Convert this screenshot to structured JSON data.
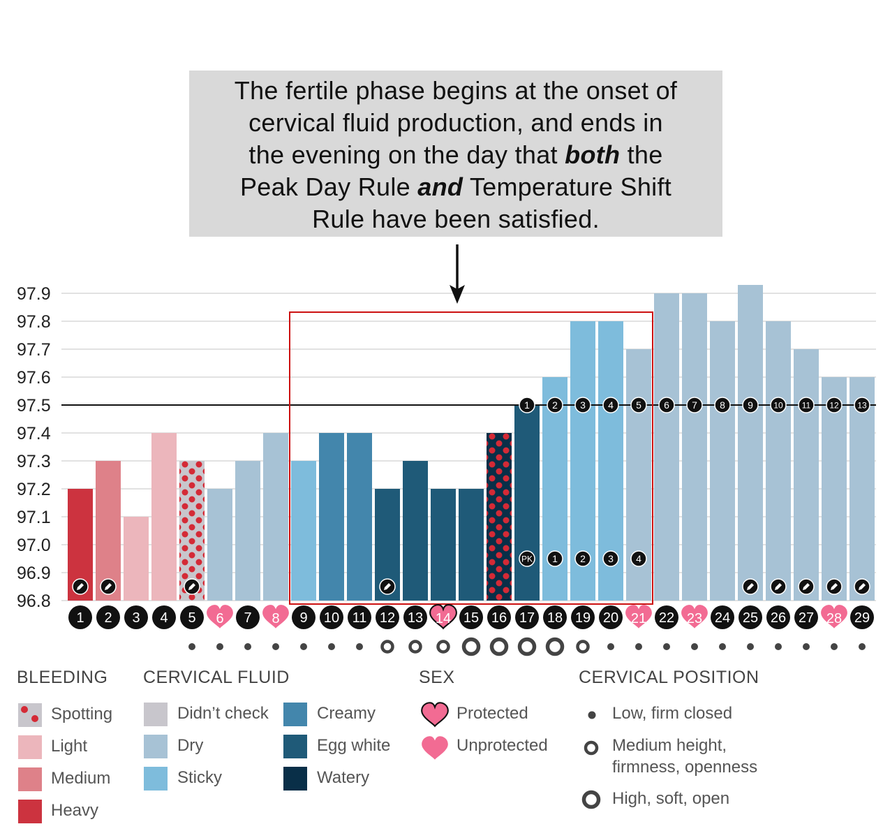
{
  "callout": {
    "line1": "The fertile phase begins at the onset of",
    "line2": "cervical fluid production, and ends in",
    "line3a": "the evening on the day that ",
    "line3b": "both",
    "line3c": " the",
    "line4a": "Peak Day Rule ",
    "line4b": "and",
    "line4c": " Temperature Shift",
    "line5": "Rule have been satisfied."
  },
  "colors": {
    "heavy": "#cc333f",
    "medium": "#de8189",
    "light": "#ecb6bc",
    "spotting_bg": "#c8c6cc",
    "spotting_dot": "#d42a36",
    "didnt_check": "#c8c6cc",
    "dry": "#a7c2d5",
    "sticky": "#7ebcdc",
    "creamy": "#4386ac",
    "egg_white": "#1f5a78",
    "watery": "#092f48",
    "heart": "#f26b93",
    "frame": "#cc1111"
  },
  "chart_data": {
    "type": "bar",
    "ylim": [
      96.8,
      97.95
    ],
    "yticks": [
      "97.9",
      "97.8",
      "97.7",
      "97.6",
      "97.5",
      "97.4",
      "97.3",
      "97.2",
      "97.1",
      "97.0",
      "96.9",
      "96.8"
    ],
    "coverline": 97.5,
    "grid": true,
    "days": [
      "1",
      "2",
      "3",
      "4",
      "5",
      "6",
      "7",
      "8",
      "9",
      "10",
      "11",
      "12",
      "13",
      "14",
      "15",
      "16",
      "17",
      "18",
      "19",
      "20",
      "21",
      "22",
      "23",
      "24",
      "25",
      "26",
      "27",
      "28",
      "29"
    ],
    "temperatures": [
      97.2,
      97.3,
      97.1,
      97.4,
      97.3,
      97.2,
      97.3,
      97.4,
      97.3,
      97.4,
      97.4,
      97.2,
      97.3,
      97.2,
      97.2,
      97.4,
      97.5,
      97.6,
      97.8,
      97.8,
      97.7,
      97.9,
      97.9,
      97.8,
      97.93,
      97.8,
      97.7,
      97.6,
      97.6
    ],
    "categories": [
      "heavy",
      "medium",
      "light",
      "light",
      "spotting",
      "dry",
      "dry",
      "dry",
      "sticky",
      "creamy",
      "creamy",
      "egg_white",
      "egg_white",
      "egg_white",
      "egg_white",
      "spotting_watery",
      "egg_white",
      "sticky",
      "sticky",
      "sticky",
      "dry",
      "dry",
      "dry",
      "dry",
      "dry",
      "dry",
      "dry",
      "dry",
      "dry"
    ],
    "sex": [
      "",
      "",
      "",
      "",
      "",
      "unprotected",
      "",
      "unprotected",
      "",
      "",
      "",
      "",
      "",
      "protected",
      "",
      "",
      "",
      "",
      "",
      "",
      "unprotected",
      "",
      "unprotected",
      "",
      "",
      "",
      "",
      "unprotected",
      ""
    ],
    "cervical_position": [
      "low",
      "low",
      "low",
      "low",
      "low",
      "low",
      "low",
      "medium",
      "medium",
      "medium",
      "high",
      "high",
      "high",
      "high",
      "medium",
      "low",
      "low",
      "low",
      "low",
      "low",
      "low",
      "low",
      "low",
      "low",
      "low"
    ],
    "cervical_position_start_day": 5,
    "pencil_days": [
      1,
      2,
      5,
      12,
      25,
      26,
      27,
      28,
      29
    ],
    "temp_shift_counts": [
      "1",
      "2",
      "3",
      "4",
      "5",
      "6",
      "7",
      "8",
      "9",
      "10",
      "11",
      "12",
      "13"
    ],
    "temp_shift_start_day": 17,
    "peak_labels": [
      "PK",
      "1",
      "2",
      "3",
      "4"
    ],
    "peak_start_day": 17,
    "fertile_window_days": [
      9,
      21
    ]
  },
  "legend": {
    "bleeding": {
      "title": "BLEEDING",
      "items": [
        {
          "label": "Spotting",
          "key": "spotting"
        },
        {
          "label": "Light",
          "key": "light"
        },
        {
          "label": "Medium",
          "key": "medium"
        },
        {
          "label": "Heavy",
          "key": "heavy"
        }
      ]
    },
    "cervical_fluid": {
      "title": "CERVICAL FLUID",
      "items": [
        {
          "label": "Didn’t check",
          "key": "didnt_check"
        },
        {
          "label": "Dry",
          "key": "dry"
        },
        {
          "label": "Sticky",
          "key": "sticky"
        },
        {
          "label": "Creamy",
          "key": "creamy"
        },
        {
          "label": "Egg white",
          "key": "egg_white"
        },
        {
          "label": "Watery",
          "key": "watery"
        }
      ]
    },
    "sex": {
      "title": "SEX",
      "items": [
        {
          "label": "Protected",
          "key": "protected"
        },
        {
          "label": "Unprotected",
          "key": "unprotected"
        }
      ]
    },
    "cervical_position": {
      "title": "CERVICAL POSITION",
      "items": [
        {
          "label": "Low, firm closed",
          "key": "low"
        },
        {
          "label": "Medium height,",
          "label2": "firmness, openness",
          "key": "medium"
        },
        {
          "label": "High, soft, open",
          "key": "high"
        }
      ]
    }
  }
}
